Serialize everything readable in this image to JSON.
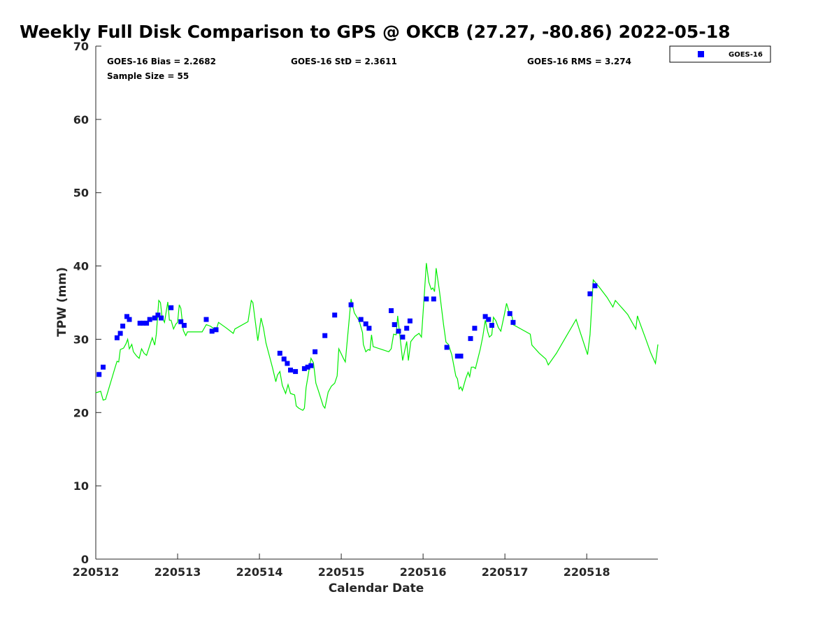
{
  "chart_data": {
    "type": "scatter",
    "title": "Weekly Full Disk Comparison to GPS @ OKCB (27.27, -80.86) 2022-05-18",
    "xlabel": "Calendar Date",
    "ylabel": "TPW (mm)",
    "xlim": [
      0,
      6.87
    ],
    "ylim": [
      0,
      70
    ],
    "x_ticks": [
      {
        "value": 0,
        "label": "220512"
      },
      {
        "value": 1,
        "label": "220513"
      },
      {
        "value": 2,
        "label": "220514"
      },
      {
        "value": 3,
        "label": "220515"
      },
      {
        "value": 4,
        "label": "220516"
      },
      {
        "value": 5,
        "label": "220517"
      },
      {
        "value": 6,
        "label": "220518"
      }
    ],
    "y_ticks": [
      0,
      10,
      20,
      30,
      40,
      50,
      60,
      70
    ],
    "stats": {
      "bias": "GOES-16 Bias = 2.2682",
      "std": "GOES-16 StD = 2.3611",
      "rms": "GOES-16 RMS = 3.274",
      "sample": "Sample Size = 55"
    },
    "legend": {
      "position": "top-right-outside",
      "label": "GOES-16",
      "color": "#0000ff"
    },
    "series": [
      {
        "name": "GOES-16",
        "mark": "square",
        "color": "#0000ff",
        "points": [
          [
            0.04,
            25.2
          ],
          [
            0.09,
            26.2
          ],
          [
            0.26,
            30.2
          ],
          [
            0.3,
            30.8
          ],
          [
            0.33,
            31.8
          ],
          [
            0.38,
            33.1
          ],
          [
            0.41,
            32.7
          ],
          [
            0.54,
            32.2
          ],
          [
            0.58,
            32.2
          ],
          [
            0.62,
            32.2
          ],
          [
            0.66,
            32.7
          ],
          [
            0.72,
            32.9
          ],
          [
            0.76,
            33.3
          ],
          [
            0.8,
            32.9
          ],
          [
            0.92,
            34.3
          ],
          [
            1.04,
            32.4
          ],
          [
            1.08,
            31.9
          ],
          [
            1.35,
            32.7
          ],
          [
            1.42,
            31.1
          ],
          [
            1.47,
            31.3
          ],
          [
            2.25,
            28.1
          ],
          [
            2.3,
            27.3
          ],
          [
            2.34,
            26.7
          ],
          [
            2.38,
            25.8
          ],
          [
            2.44,
            25.6
          ],
          [
            2.55,
            26.0
          ],
          [
            2.59,
            26.2
          ],
          [
            2.63,
            26.4
          ],
          [
            2.68,
            28.3
          ],
          [
            2.8,
            30.5
          ],
          [
            2.92,
            33.3
          ],
          [
            3.12,
            34.7
          ],
          [
            3.24,
            32.7
          ],
          [
            3.3,
            32.1
          ],
          [
            3.34,
            31.5
          ],
          [
            3.61,
            33.9
          ],
          [
            3.65,
            32.0
          ],
          [
            3.7,
            31.1
          ],
          [
            3.75,
            30.3
          ],
          [
            3.8,
            31.5
          ],
          [
            3.84,
            32.5
          ],
          [
            4.04,
            35.5
          ],
          [
            4.13,
            35.5
          ],
          [
            4.29,
            28.9
          ],
          [
            4.42,
            27.7
          ],
          [
            4.46,
            27.7
          ],
          [
            4.58,
            30.1
          ],
          [
            4.63,
            31.5
          ],
          [
            4.76,
            33.1
          ],
          [
            4.8,
            32.7
          ],
          [
            4.84,
            31.9
          ],
          [
            5.06,
            33.5
          ],
          [
            5.1,
            32.3
          ],
          [
            6.04,
            36.2
          ],
          [
            6.1,
            37.3
          ]
        ]
      },
      {
        "name": "GPS",
        "mark": "line",
        "color": "#00ee00",
        "points": [
          [
            0.0,
            22.7
          ],
          [
            0.06,
            22.9
          ],
          [
            0.09,
            21.7
          ],
          [
            0.12,
            21.8
          ],
          [
            0.16,
            23.3
          ],
          [
            0.2,
            24.8
          ],
          [
            0.24,
            26.3
          ],
          [
            0.26,
            27.0
          ],
          [
            0.28,
            26.9
          ],
          [
            0.3,
            28.6
          ],
          [
            0.34,
            28.8
          ],
          [
            0.37,
            29.4
          ],
          [
            0.39,
            30.0
          ],
          [
            0.41,
            28.7
          ],
          [
            0.44,
            29.3
          ],
          [
            0.46,
            28.3
          ],
          [
            0.5,
            27.7
          ],
          [
            0.53,
            27.4
          ],
          [
            0.56,
            28.7
          ],
          [
            0.59,
            28.1
          ],
          [
            0.62,
            27.8
          ],
          [
            0.67,
            29.5
          ],
          [
            0.69,
            30.2
          ],
          [
            0.72,
            29.2
          ],
          [
            0.74,
            30.7
          ],
          [
            0.77,
            35.3
          ],
          [
            0.79,
            35.0
          ],
          [
            0.81,
            33.0
          ],
          [
            0.84,
            32.3
          ],
          [
            0.86,
            33.7
          ],
          [
            0.88,
            35.1
          ],
          [
            0.9,
            32.6
          ],
          [
            0.92,
            32.6
          ],
          [
            0.95,
            31.4
          ],
          [
            0.98,
            32.1
          ],
          [
            1.0,
            32.3
          ],
          [
            1.02,
            34.7
          ],
          [
            1.04,
            34.2
          ],
          [
            1.07,
            31.2
          ],
          [
            1.1,
            30.5
          ],
          [
            1.12,
            31.0
          ],
          [
            1.3,
            31.0
          ],
          [
            1.35,
            32.0
          ],
          [
            1.4,
            31.8
          ],
          [
            1.45,
            31.4
          ],
          [
            1.47,
            31.2
          ],
          [
            1.5,
            32.3
          ],
          [
            1.6,
            31.5
          ],
          [
            1.68,
            30.8
          ],
          [
            1.7,
            31.4
          ],
          [
            1.86,
            32.4
          ],
          [
            1.9,
            35.3
          ],
          [
            1.92,
            35.0
          ],
          [
            1.95,
            32.4
          ],
          [
            1.98,
            29.8
          ],
          [
            2.02,
            32.9
          ],
          [
            2.05,
            31.5
          ],
          [
            2.08,
            29.5
          ],
          [
            2.12,
            27.8
          ],
          [
            2.16,
            26.1
          ],
          [
            2.2,
            24.2
          ],
          [
            2.22,
            25.1
          ],
          [
            2.25,
            25.6
          ],
          [
            2.28,
            23.7
          ],
          [
            2.32,
            22.6
          ],
          [
            2.35,
            23.8
          ],
          [
            2.38,
            22.6
          ],
          [
            2.43,
            22.4
          ],
          [
            2.45,
            20.9
          ],
          [
            2.48,
            20.6
          ],
          [
            2.53,
            20.3
          ],
          [
            2.55,
            20.6
          ],
          [
            2.57,
            23.4
          ],
          [
            2.6,
            25.4
          ],
          [
            2.63,
            27.4
          ],
          [
            2.66,
            26.8
          ],
          [
            2.69,
            24.0
          ],
          [
            2.72,
            23.0
          ],
          [
            2.78,
            20.9
          ],
          [
            2.8,
            20.6
          ],
          [
            2.84,
            22.8
          ],
          [
            2.88,
            23.6
          ],
          [
            2.92,
            24.0
          ],
          [
            2.95,
            25.0
          ],
          [
            2.97,
            28.7
          ],
          [
            3.0,
            28.0
          ],
          [
            3.03,
            27.3
          ],
          [
            3.05,
            26.9
          ],
          [
            3.12,
            35.5
          ],
          [
            3.16,
            33.6
          ],
          [
            3.22,
            32.5
          ],
          [
            3.26,
            30.9
          ],
          [
            3.27,
            29.3
          ],
          [
            3.3,
            28.3
          ],
          [
            3.33,
            28.6
          ],
          [
            3.35,
            28.5
          ],
          [
            3.37,
            30.6
          ],
          [
            3.39,
            29.0
          ],
          [
            3.58,
            28.3
          ],
          [
            3.61,
            28.7
          ],
          [
            3.64,
            30.7
          ],
          [
            3.67,
            30.6
          ],
          [
            3.69,
            33.2
          ],
          [
            3.71,
            31.1
          ],
          [
            3.75,
            27.1
          ],
          [
            3.8,
            29.7
          ],
          [
            3.82,
            27.1
          ],
          [
            3.85,
            29.7
          ],
          [
            3.9,
            30.4
          ],
          [
            3.95,
            30.8
          ],
          [
            3.98,
            30.3
          ],
          [
            4.02,
            37.0
          ],
          [
            4.04,
            40.4
          ],
          [
            4.07,
            37.8
          ],
          [
            4.1,
            36.8
          ],
          [
            4.12,
            37.0
          ],
          [
            4.14,
            36.5
          ],
          [
            4.16,
            39.7
          ],
          [
            4.2,
            36.6
          ],
          [
            4.25,
            32.0
          ],
          [
            4.28,
            29.6
          ],
          [
            4.31,
            29.3
          ],
          [
            4.35,
            27.9
          ],
          [
            4.4,
            25.0
          ],
          [
            4.42,
            24.6
          ],
          [
            4.44,
            23.2
          ],
          [
            4.46,
            23.5
          ],
          [
            4.48,
            23.0
          ],
          [
            4.52,
            24.6
          ],
          [
            4.55,
            25.5
          ],
          [
            4.57,
            24.9
          ],
          [
            4.59,
            26.2
          ],
          [
            4.62,
            26.2
          ],
          [
            4.64,
            26.0
          ],
          [
            4.7,
            28.7
          ],
          [
            4.73,
            30.4
          ],
          [
            4.76,
            32.6
          ],
          [
            4.79,
            31.0
          ],
          [
            4.81,
            30.3
          ],
          [
            4.84,
            30.6
          ],
          [
            4.86,
            33.0
          ],
          [
            4.89,
            32.5
          ],
          [
            4.92,
            31.6
          ],
          [
            4.95,
            31.1
          ],
          [
            4.99,
            33.2
          ],
          [
            5.02,
            34.9
          ],
          [
            5.05,
            33.8
          ],
          [
            5.09,
            33.0
          ],
          [
            5.1,
            32.0
          ],
          [
            5.31,
            30.7
          ],
          [
            5.33,
            29.2
          ],
          [
            5.42,
            28.1
          ],
          [
            5.5,
            27.3
          ],
          [
            5.53,
            26.5
          ],
          [
            5.63,
            28.1
          ],
          [
            5.75,
            30.4
          ],
          [
            5.87,
            32.7
          ],
          [
            5.91,
            31.3
          ],
          [
            6.01,
            27.9
          ],
          [
            6.04,
            30.6
          ],
          [
            6.08,
            38.1
          ],
          [
            6.14,
            37.3
          ],
          [
            6.25,
            35.7
          ],
          [
            6.32,
            34.4
          ],
          [
            6.35,
            35.3
          ],
          [
            6.5,
            33.4
          ],
          [
            6.6,
            31.4
          ],
          [
            6.62,
            33.2
          ],
          [
            6.64,
            32.5
          ],
          [
            6.72,
            30.1
          ],
          [
            6.78,
            28.2
          ],
          [
            6.84,
            26.7
          ],
          [
            6.87,
            29.3
          ]
        ]
      }
    ]
  }
}
